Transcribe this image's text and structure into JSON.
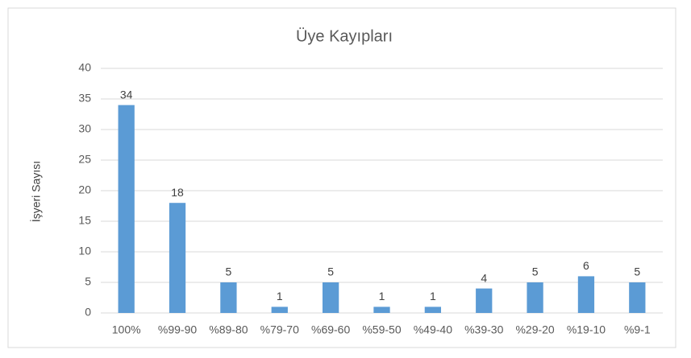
{
  "chart_data": {
    "type": "bar",
    "title": "Üye Kayıpları",
    "y_label": "İşyeri Sayısı",
    "categories": [
      "100%",
      "%99-90",
      "%89-80",
      "%79-70",
      "%69-60",
      "%59-50",
      "%49-40",
      "%39-30",
      "%29-20",
      "%19-10",
      "%9-1"
    ],
    "values": [
      34,
      18,
      5,
      1,
      5,
      1,
      1,
      4,
      5,
      6,
      5
    ],
    "color": "#5b9bd5",
    "ylim": [
      0,
      40
    ],
    "yticks": [
      0,
      5,
      10,
      15,
      20,
      25,
      30,
      35,
      40
    ],
    "grid": true
  }
}
